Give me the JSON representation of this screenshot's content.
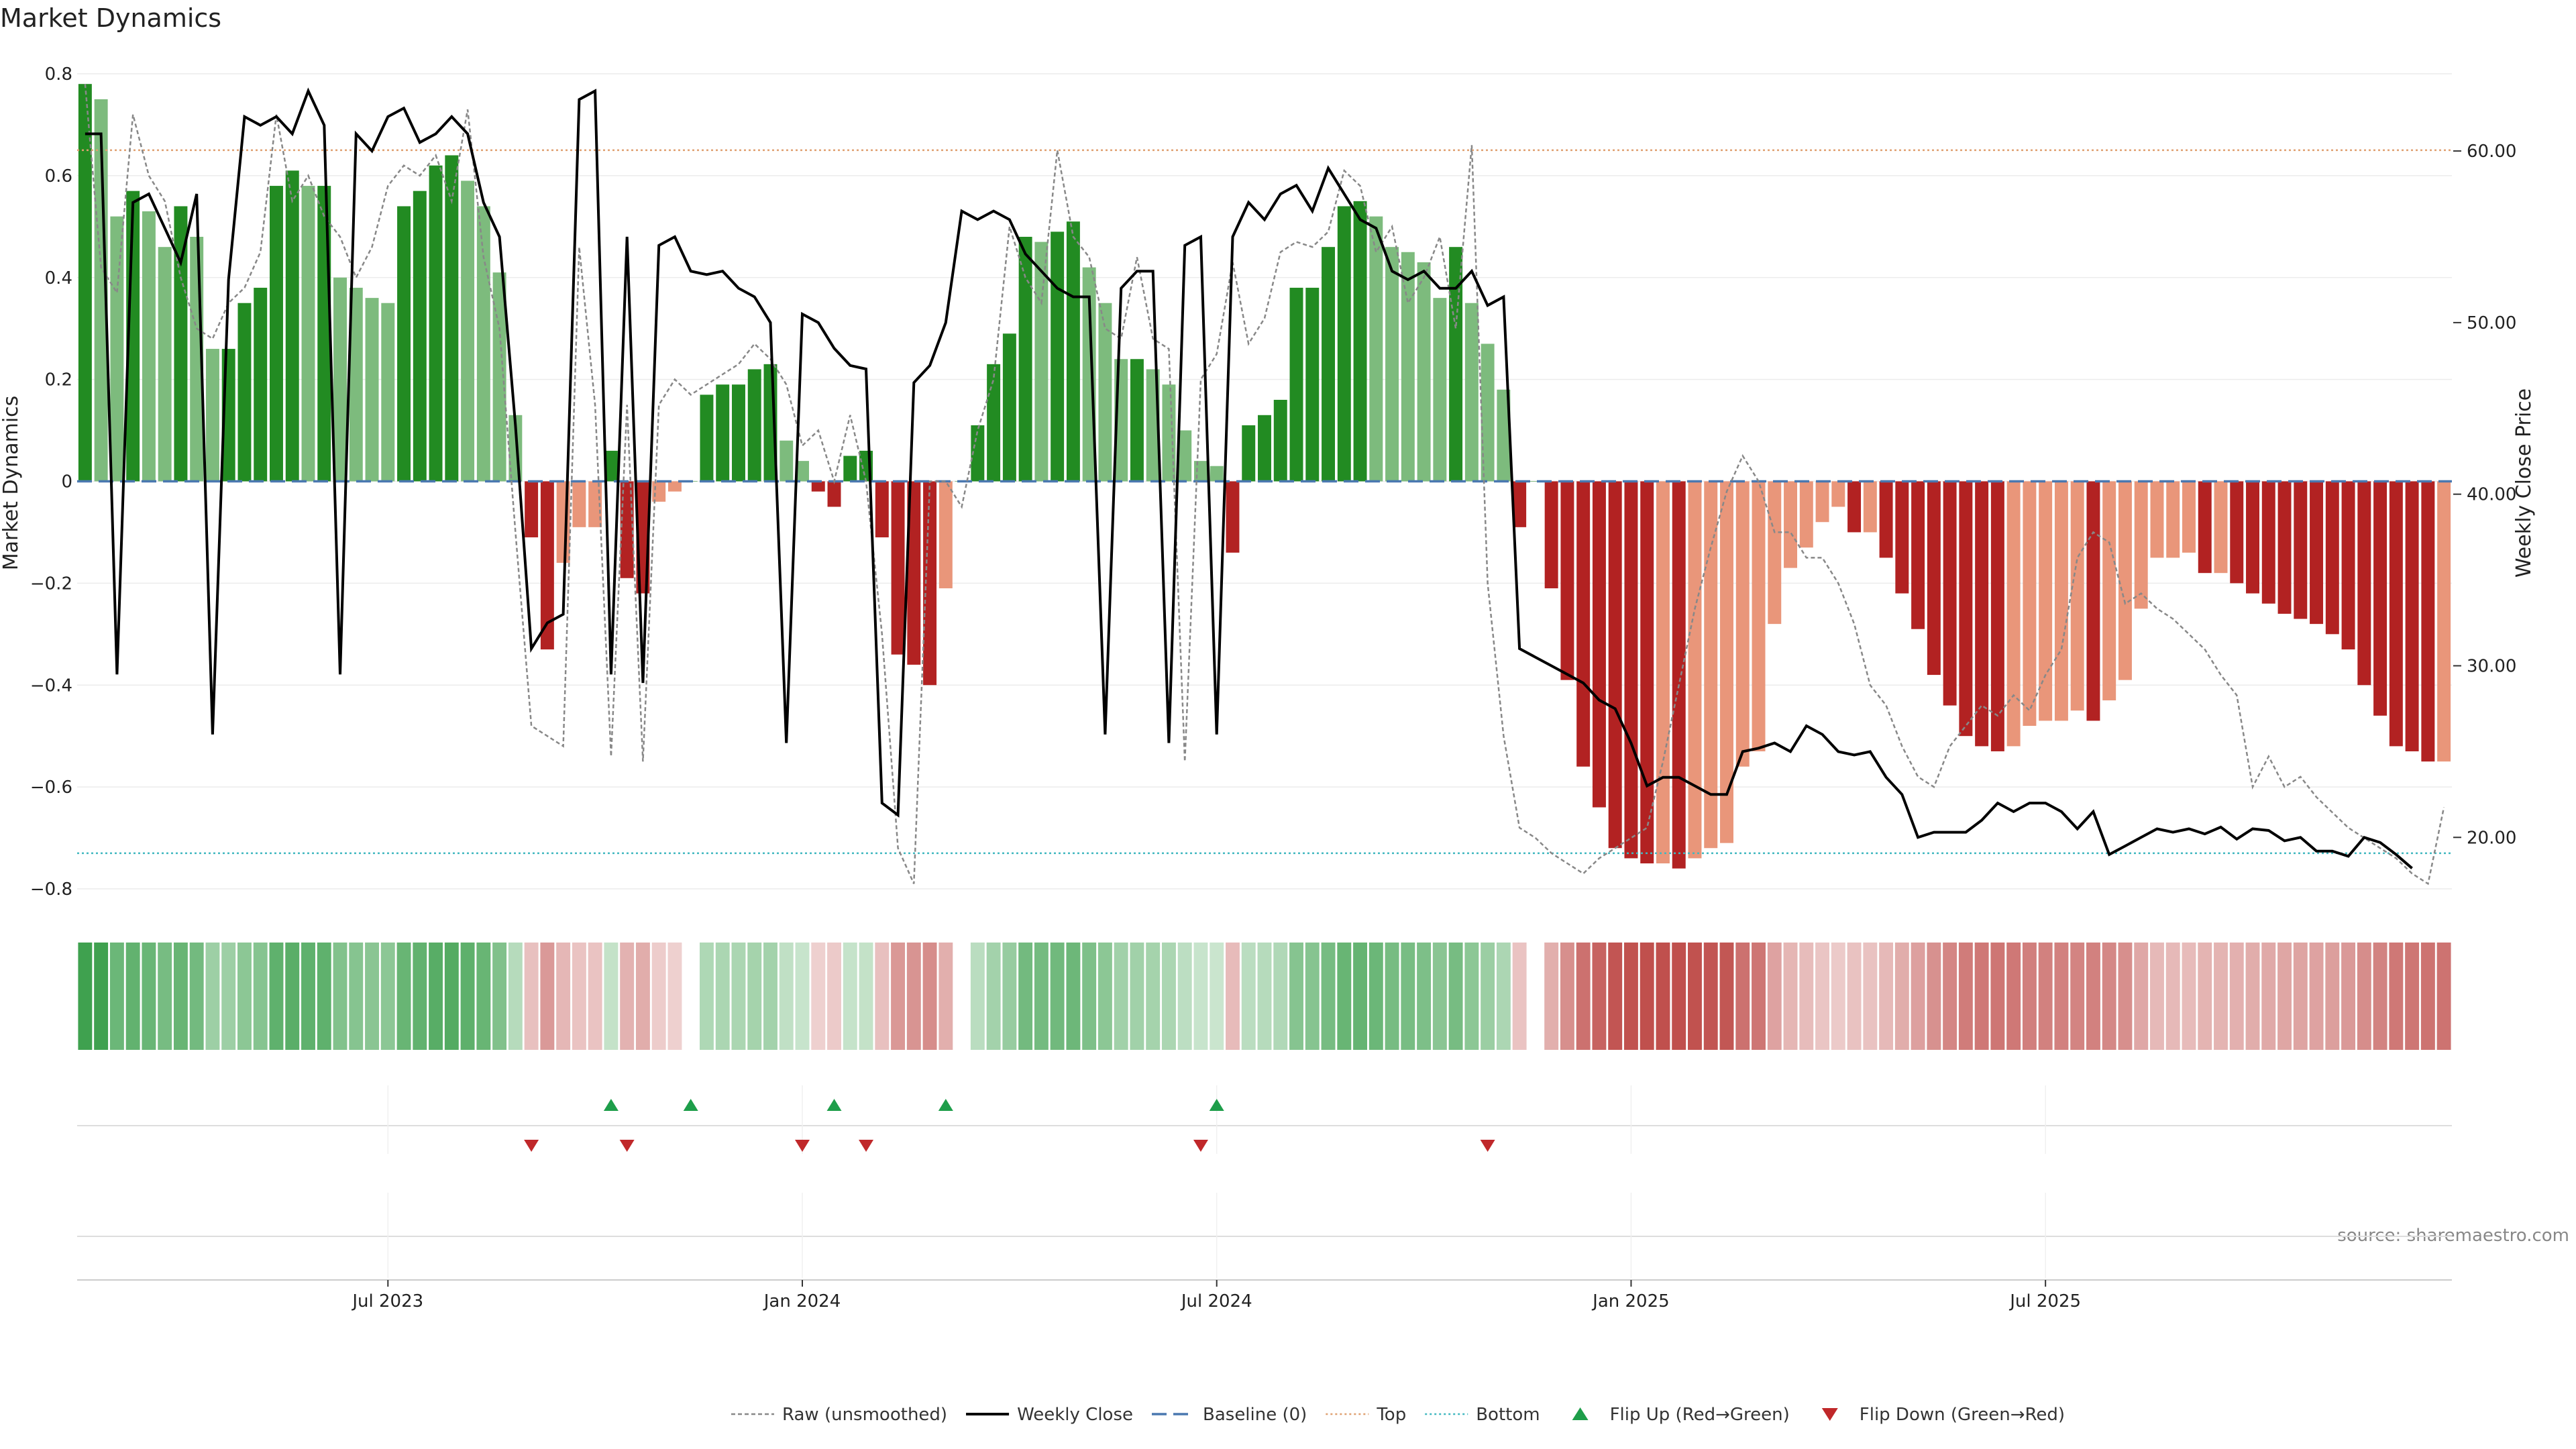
{
  "chart_data": {
    "type": "bar",
    "title": "Market Dynamics",
    "ylabel": "Market Dynamics",
    "ylabel_right": "Weekly Close Price",
    "ylim": [
      -0.8,
      0.8
    ],
    "ylim_right": [
      17,
      64.5
    ],
    "yticks": [
      {
        "v": 0.8,
        "t": "0.8"
      },
      {
        "v": 0.6,
        "t": "0.6"
      },
      {
        "v": 0.4,
        "t": "0.4"
      },
      {
        "v": 0.2,
        "t": "0.2"
      },
      {
        "v": 0,
        "t": "0"
      },
      {
        "v": -0.2,
        "t": "−0.2"
      },
      {
        "v": -0.4,
        "t": "−0.4"
      },
      {
        "v": -0.6,
        "t": "−0.6"
      },
      {
        "v": -0.8,
        "t": "−0.8"
      }
    ],
    "yticks_right": [
      {
        "v": 60,
        "t": "60.00"
      },
      {
        "v": 50,
        "t": "50.00"
      },
      {
        "v": 40,
        "t": "40.00"
      },
      {
        "v": 30,
        "t": "30.00"
      },
      {
        "v": 20,
        "t": "20.00"
      }
    ],
    "xticks": [
      {
        "i": 19,
        "t": "Jul 2023"
      },
      {
        "i": 45,
        "t": "Jan 2024"
      },
      {
        "i": 71,
        "t": "Jul 2024"
      },
      {
        "i": 97,
        "t": "Jan 2025"
      },
      {
        "i": 123,
        "t": "Jul 2025"
      }
    ],
    "top_level": 0.65,
    "bottom_level": -0.73,
    "baseline": 0,
    "values": [
      0.78,
      0.75,
      0.52,
      0.57,
      0.53,
      0.46,
      0.54,
      0.48,
      0.26,
      0.26,
      0.35,
      0.38,
      0.58,
      0.61,
      0.58,
      0.58,
      0.4,
      0.38,
      0.36,
      0.35,
      0.54,
      0.57,
      0.62,
      0.64,
      0.59,
      0.54,
      0.41,
      0.13,
      -0.11,
      -0.33,
      -0.16,
      -0.09,
      -0.09,
      0.06,
      -0.19,
      -0.22,
      -0.04,
      -0.02,
      0.0,
      0.17,
      0.19,
      0.19,
      0.22,
      0.23,
      0.08,
      0.04,
      -0.02,
      -0.05,
      0.05,
      0.06,
      -0.11,
      -0.34,
      -0.36,
      -0.4,
      -0.21,
      0.0,
      0.11,
      0.23,
      0.29,
      0.48,
      0.47,
      0.49,
      0.51,
      0.42,
      0.35,
      0.24,
      0.24,
      0.22,
      0.19,
      0.1,
      0.04,
      0.03,
      -0.14,
      0.11,
      0.13,
      0.16,
      0.38,
      0.38,
      0.46,
      0.54,
      0.55,
      0.52,
      0.46,
      0.45,
      0.43,
      0.36,
      0.46,
      0.35,
      0.27,
      0.18,
      -0.09,
      0.0,
      -0.21,
      -0.39,
      -0.56,
      -0.64,
      -0.72,
      -0.74,
      -0.75,
      -0.75,
      -0.76,
      -0.74,
      -0.72,
      -0.71,
      -0.56,
      -0.53,
      -0.28,
      -0.17,
      -0.13,
      -0.08,
      -0.05,
      -0.1,
      -0.1,
      -0.15,
      -0.22,
      -0.29,
      -0.38,
      -0.44,
      -0.5,
      -0.52,
      -0.53,
      -0.52,
      -0.48,
      -0.47,
      -0.47,
      -0.45,
      -0.47,
      -0.43,
      -0.39,
      -0.25,
      -0.15,
      -0.15,
      -0.14,
      -0.18,
      -0.18,
      -0.2,
      -0.22,
      -0.24,
      -0.26,
      -0.27,
      -0.28,
      -0.3,
      -0.33,
      -0.4,
      -0.46,
      -0.52,
      -0.53,
      -0.55,
      -0.55
    ],
    "price": [
      61,
      61,
      29.5,
      57,
      57.5,
      55.5,
      53.5,
      57.5,
      26,
      52.5,
      62,
      61.5,
      62,
      61,
      63.5,
      61.5,
      29.5,
      61,
      60,
      62,
      62.5,
      60.5,
      61,
      62,
      61,
      57,
      55,
      44,
      31,
      32.5,
      33,
      63,
      63.5,
      29.5,
      55,
      29,
      54.5,
      55,
      53,
      52.8,
      53,
      52,
      51.5,
      50,
      25.5,
      50.5,
      50,
      48.5,
      47.5,
      47.3,
      22,
      21.3,
      46.5,
      47.5,
      50,
      56.5,
      56,
      56.5,
      56,
      54,
      53,
      52,
      51.5,
      51.5,
      26,
      52,
      53,
      53,
      25.5,
      54.5,
      55,
      26,
      55,
      57,
      56,
      57.5,
      58,
      56.5,
      59,
      57.5,
      56,
      55.5,
      53,
      52.5,
      53,
      52,
      52,
      53,
      51,
      51.5,
      31,
      30.5,
      30,
      29.5,
      29,
      28,
      27.5,
      25.5,
      23,
      23.5,
      23.5,
      23,
      22.5,
      22.5,
      25,
      25.2,
      25.5,
      25,
      26.5,
      26,
      25,
      24.8,
      25,
      23.5,
      22.5,
      20,
      20.3,
      20.3,
      20.3,
      21,
      22,
      21.5,
      22,
      22,
      21.5,
      20.5,
      21.5,
      19,
      19.5,
      20,
      20.5,
      20.3,
      20.5,
      20.2,
      20.6,
      19.9,
      20.5,
      20.4,
      19.8,
      20,
      19.2,
      19.2,
      18.9,
      20,
      19.7,
      19,
      18.2
    ],
    "raw": [
      0.78,
      0.42,
      0.37,
      0.72,
      0.6,
      0.55,
      0.4,
      0.3,
      0.28,
      0.35,
      0.38,
      0.45,
      0.72,
      0.55,
      0.6,
      0.52,
      0.48,
      0.4,
      0.46,
      0.58,
      0.62,
      0.6,
      0.64,
      0.55,
      0.73,
      0.44,
      0.3,
      -0.1,
      -0.48,
      -0.5,
      -0.52,
      0.46,
      0.15,
      -0.54,
      0.15,
      -0.55,
      0.15,
      0.2,
      0.17,
      0.19,
      0.21,
      0.23,
      0.27,
      0.24,
      0.19,
      0.07,
      0.1,
      0.0,
      0.13,
      0.0,
      -0.3,
      -0.72,
      -0.79,
      0.0,
      0.0,
      -0.05,
      0.1,
      0.2,
      0.5,
      0.4,
      0.35,
      0.65,
      0.48,
      0.44,
      0.3,
      0.28,
      0.44,
      0.28,
      0.26,
      -0.55,
      0.2,
      0.25,
      0.43,
      0.27,
      0.32,
      0.45,
      0.47,
      0.46,
      0.49,
      0.61,
      0.58,
      0.45,
      0.5,
      0.35,
      0.4,
      0.48,
      0.3,
      0.66,
      -0.2,
      -0.5,
      -0.68,
      -0.7,
      -0.73,
      -0.75,
      -0.77,
      -0.74,
      -0.72,
      -0.7,
      -0.68,
      -0.55,
      -0.4,
      -0.25,
      -0.13,
      -0.02,
      0.05,
      0.0,
      -0.1,
      -0.1,
      -0.15,
      -0.15,
      -0.2,
      -0.28,
      -0.4,
      -0.44,
      -0.52,
      -0.58,
      -0.6,
      -0.52,
      -0.48,
      -0.44,
      -0.46,
      -0.42,
      -0.45,
      -0.38,
      -0.33,
      -0.15,
      -0.1,
      -0.12,
      -0.24,
      -0.22,
      -0.25,
      -0.27,
      -0.3,
      -0.33,
      -0.38,
      -0.42,
      -0.6,
      -0.54,
      -0.6,
      -0.58,
      -0.62,
      -0.65,
      -0.68,
      -0.7,
      -0.72,
      -0.74,
      -0.77,
      -0.79,
      -0.64
    ],
    "flips_up": [
      33,
      38,
      47,
      54,
      71
    ],
    "flips_down": [
      28,
      34,
      45,
      49,
      70,
      88
    ],
    "legend": [
      {
        "key": "raw",
        "label": "Raw (unsmoothed)"
      },
      {
        "key": "close",
        "label": "Weekly Close"
      },
      {
        "key": "baseline",
        "label": "Baseline (0)"
      },
      {
        "key": "top",
        "label": "Top"
      },
      {
        "key": "bottom",
        "label": "Bottom"
      },
      {
        "key": "up",
        "label": "Flip Up (Red→Green)"
      },
      {
        "key": "down",
        "label": "Flip Down (Green→Red)"
      }
    ],
    "legend_position": "bottom-center",
    "source": "source: sharemaestro.com",
    "colors": {
      "pos_dark": "#228b22",
      "pos_light": "#7dbb7d",
      "neg_dark": "#b22222",
      "neg_light": "#e9967a",
      "price": "#000000",
      "raw": "#888888",
      "baseline": "#4a78b0",
      "top": "#e0a070",
      "bottom": "#40b8c0",
      "flip_up": "#1e9e4a",
      "flip_down": "#c0282a"
    }
  }
}
